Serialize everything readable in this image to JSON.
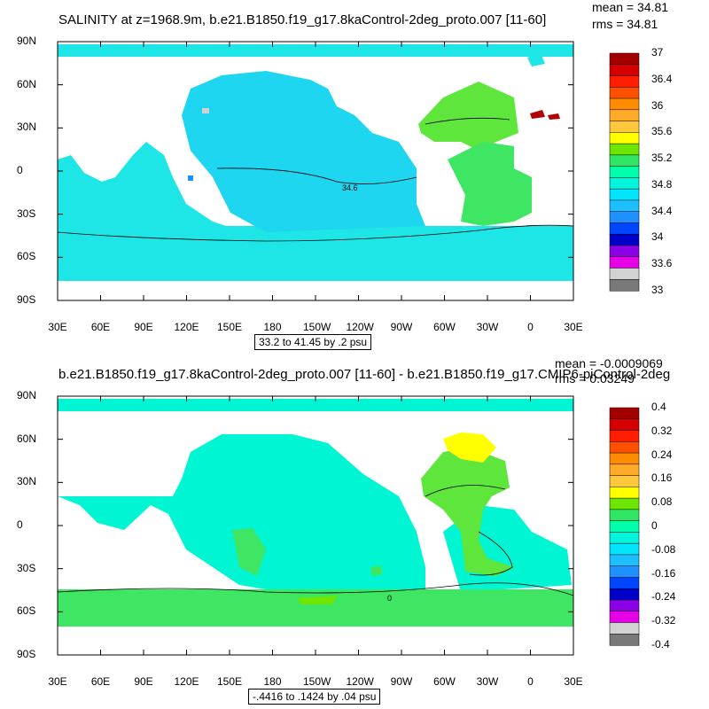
{
  "panels": [
    {
      "title": "SALINITY at z=1968.9m, b.e21.B1850.f19_g17.8kaControl-2deg_proto.007 [11-60]",
      "mean": "mean = 34.81",
      "rms": "rms = 34.81",
      "info": "33.2 to 41.45 by .2 psu",
      "contour_label": "34.6",
      "colorbar": {
        "colors": [
          "#a50000",
          "#d70000",
          "#ff1e00",
          "#ff5000",
          "#ff8c00",
          "#ffaa28",
          "#ffc83c",
          "#ffff00",
          "#6ee600",
          "#2ee664",
          "#00ffaa",
          "#00f5dc",
          "#00e6ff",
          "#1ebeff",
          "#1e90ff",
          "#0046ff",
          "#0000c8",
          "#8c00e6",
          "#e600e6",
          "#d2d2d2",
          "#787878"
        ],
        "labels": [
          "37",
          "36.4",
          "36",
          "35.6",
          "35.2",
          "34.8",
          "34.4",
          "34",
          "33.6",
          "33"
        ]
      }
    },
    {
      "title": "b.e21.B1850.f19_g17.8kaControl-2deg_proto.007 [11-60] - b.e21.B1850.f19_g17.CMIP6-piControl-2deg",
      "mean": "mean = -0.0009069",
      "rms": "rms = 0.03249",
      "info": "-.4416 to .1424 by .04 psu",
      "contour_label": "0",
      "colorbar": {
        "colors": [
          "#a50000",
          "#d70000",
          "#ff1e00",
          "#ff5000",
          "#ff8c00",
          "#ffaa28",
          "#ffc83c",
          "#ffff00",
          "#6ee600",
          "#2ee664",
          "#00ffaa",
          "#00f5dc",
          "#00e6ff",
          "#1ebeff",
          "#1e90ff",
          "#0046ff",
          "#0000c8",
          "#8c00e6",
          "#e600e6",
          "#d2d2d2",
          "#787878"
        ],
        "labels": [
          "0.4",
          "0.32",
          "0.24",
          "0.16",
          "0.08",
          "0",
          "-0.08",
          "-0.16",
          "-0.24",
          "-0.32",
          "-0.4"
        ]
      }
    }
  ],
  "axes": {
    "lat_labels": [
      "90N",
      "60N",
      "30N",
      "0",
      "30S",
      "60S",
      "90S"
    ],
    "lon_labels": [
      "30E",
      "60E",
      "90E",
      "120E",
      "150E",
      "180",
      "150W",
      "120W",
      "90W",
      "60W",
      "30W",
      "0",
      "30E"
    ]
  }
}
